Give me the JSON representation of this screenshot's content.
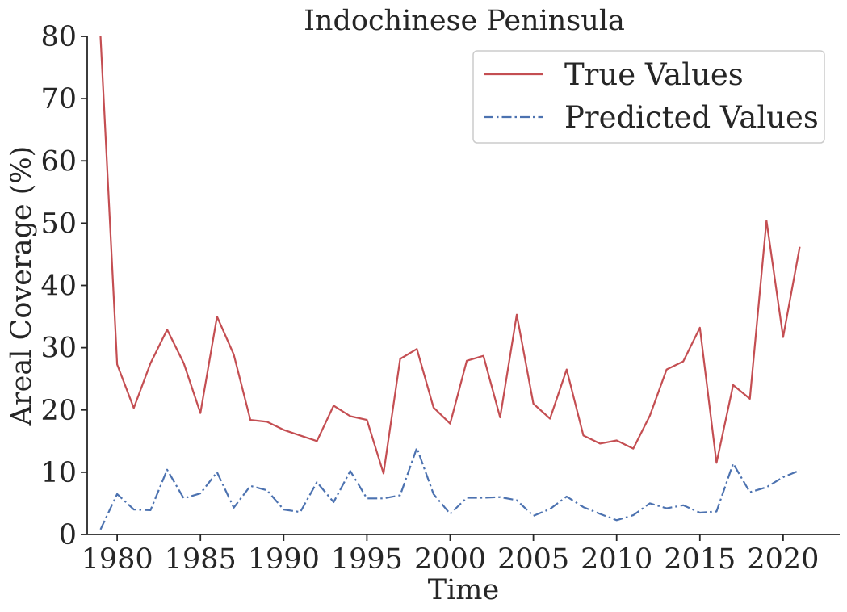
{
  "chart_data": {
    "type": "line",
    "title": "Indochinese Peninsula",
    "xlabel": "Time",
    "ylabel": "Areal Coverage (%)",
    "xlim": [
      1978.2,
      2023.4
    ],
    "ylim": [
      0,
      80
    ],
    "xticks": [
      1980,
      1985,
      1990,
      1995,
      2000,
      2005,
      2010,
      2015,
      2020
    ],
    "yticks": [
      0,
      10,
      20,
      30,
      40,
      50,
      60,
      70,
      80
    ],
    "grid": false,
    "legend_position": "top-right",
    "x": [
      1979,
      1980,
      1981,
      1982,
      1983,
      1984,
      1985,
      1986,
      1987,
      1988,
      1989,
      1990,
      1991,
      1992,
      1993,
      1994,
      1995,
      1996,
      1997,
      1998,
      1999,
      2000,
      2001,
      2002,
      2003,
      2004,
      2005,
      2006,
      2007,
      2008,
      2009,
      2010,
      2011,
      2012,
      2013,
      2014,
      2015,
      2016,
      2017,
      2018,
      2019,
      2020,
      2021
    ],
    "series": [
      {
        "name": "True Values",
        "color": "#c44e52",
        "style": "solid",
        "values": [
          80.0,
          27.3,
          20.3,
          27.5,
          32.9,
          27.5,
          19.5,
          35.0,
          28.9,
          18.4,
          18.1,
          16.8,
          15.9,
          15.0,
          20.7,
          19.0,
          18.4,
          9.8,
          28.2,
          29.8,
          20.4,
          17.8,
          27.9,
          28.7,
          18.8,
          35.3,
          21.0,
          18.6,
          26.5,
          15.9,
          14.6,
          15.1,
          13.8,
          19.1,
          26.5,
          27.8,
          33.2,
          11.5,
          24.0,
          21.8,
          50.4,
          31.7,
          46.2
        ]
      },
      {
        "name": "Predicted Values",
        "color": "#4c72b0",
        "style": "dashdot",
        "values": [
          0.8,
          6.5,
          4.0,
          3.9,
          10.4,
          5.8,
          6.6,
          10.0,
          4.3,
          7.8,
          7.1,
          4.0,
          3.6,
          8.4,
          5.2,
          10.2,
          5.8,
          5.8,
          6.3,
          13.9,
          6.5,
          3.3,
          5.9,
          5.9,
          6.0,
          5.5,
          3.0,
          4.1,
          6.1,
          4.4,
          3.3,
          2.3,
          3.1,
          5.0,
          4.2,
          4.7,
          3.5,
          3.7,
          11.4,
          6.8,
          7.6,
          9.2,
          10.3
        ]
      }
    ]
  }
}
